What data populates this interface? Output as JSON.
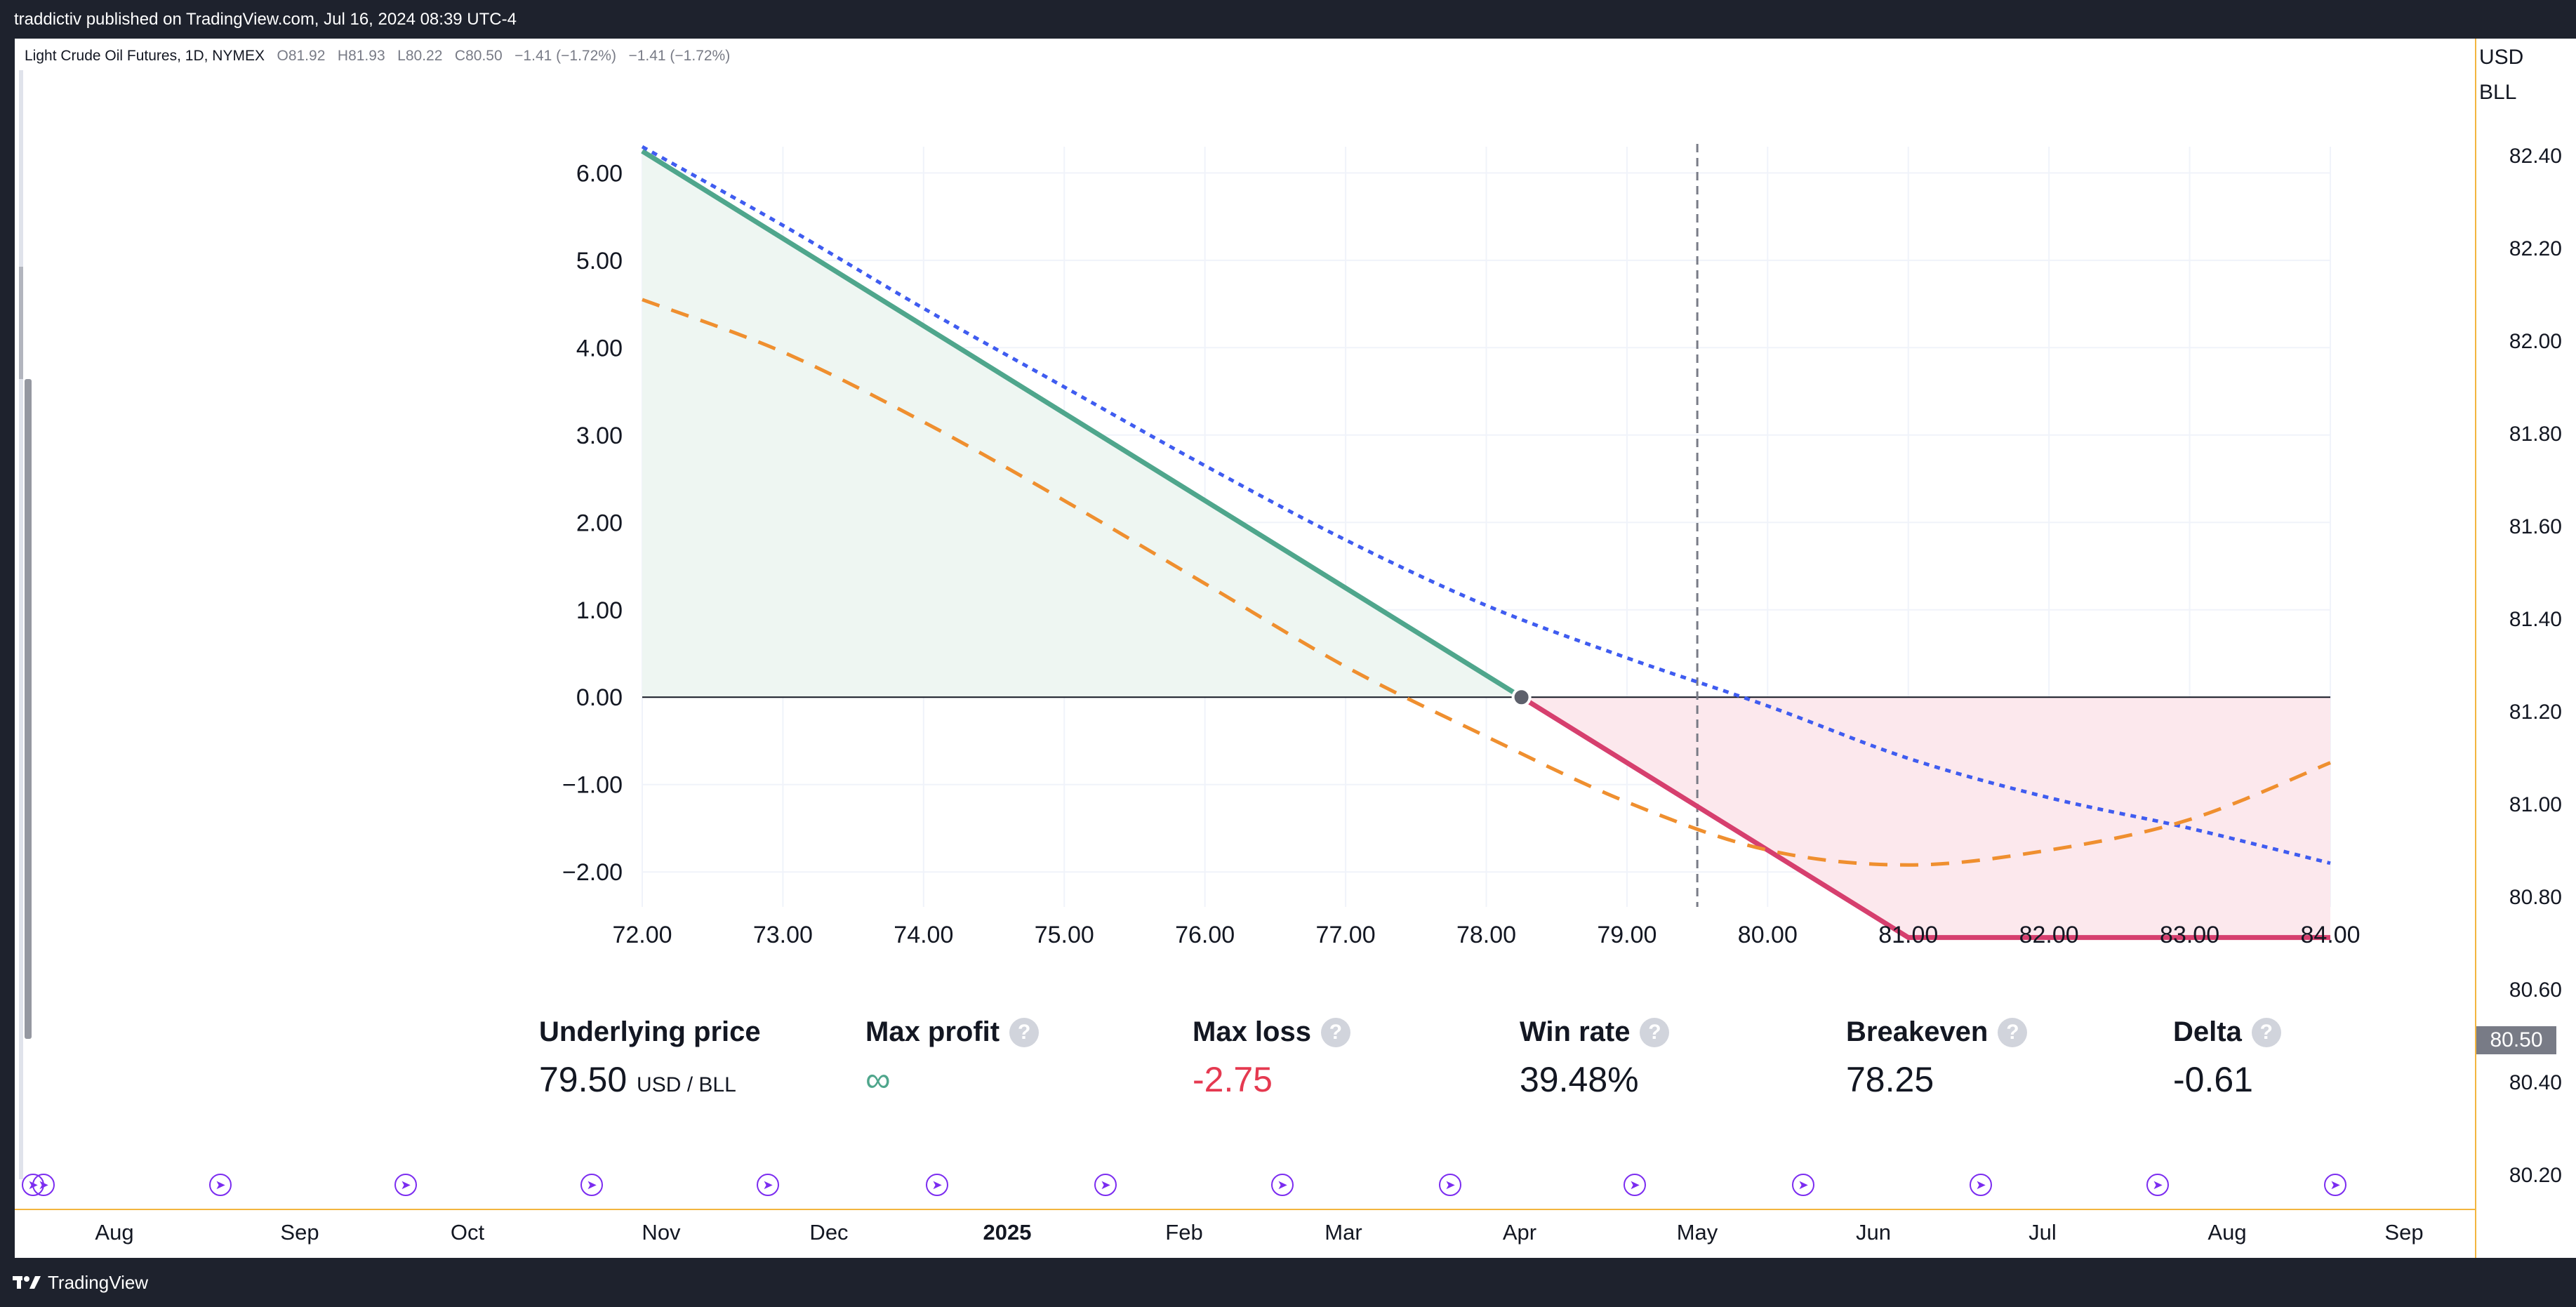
{
  "header": {
    "publisher_text": "traddictiv published on TradingView.com, Jul 16, 2024 08:39 UTC-4"
  },
  "legend": {
    "symbol": "Light Crude Oil Futures, 1D, NYMEX",
    "open_label": "O",
    "open": "81.92",
    "high_label": "H",
    "high": "81.93",
    "low_label": "L",
    "low": "80.22",
    "close_label": "C",
    "close": "80.50",
    "change1": "−1.41 (−1.72%)",
    "change2": "−1.41 (−1.72%)"
  },
  "price_axis": {
    "currency": "USD",
    "unit": "BLL",
    "ticks": [
      "82.40",
      "82.20",
      "82.00",
      "81.80",
      "81.60",
      "81.40",
      "81.20",
      "81.00",
      "80.80",
      "80.60",
      "80.40",
      "80.20"
    ],
    "current_price": "80.50"
  },
  "time_axis": {
    "labels": [
      "Aug",
      "Sep",
      "Oct",
      "Nov",
      "Dec",
      "2025",
      "Feb",
      "Mar",
      "Apr",
      "May",
      "Jun",
      "Jul",
      "Aug",
      "Sep"
    ],
    "bold_label": "2025"
  },
  "event_icon": "circle-arrow-icon",
  "chart_data": {
    "type": "line",
    "title": "",
    "xlabel": "",
    "ylabel": "",
    "xlim": [
      72.0,
      84.0
    ],
    "ylim": [
      -2.4,
      6.3
    ],
    "x_ticks": [
      "72.00",
      "73.00",
      "74.00",
      "75.00",
      "76.00",
      "77.00",
      "78.00",
      "79.00",
      "80.00",
      "81.00",
      "82.00",
      "83.00",
      "84.00"
    ],
    "y_ticks": [
      "6.00",
      "5.00",
      "4.00",
      "3.00",
      "2.00",
      "1.00",
      "0.00",
      "−1.00",
      "−2.00"
    ],
    "grid": true,
    "underlying_marker_x": 79.5,
    "breakeven_point": [
      78.25,
      0.0
    ],
    "series": [
      {
        "style": "solid",
        "color": "#4fa68c",
        "x": [
          72.0,
          78.25
        ],
        "y": [
          6.25,
          0.0
        ]
      },
      {
        "style": "solid",
        "color": "#d63f6e",
        "x": [
          78.25,
          81.0,
          84.0
        ],
        "y": [
          0.0,
          -2.75,
          -2.75
        ]
      },
      {
        "style": "dotted",
        "color": "#3f5cf0",
        "x": [
          72.0,
          73.0,
          74.0,
          75.0,
          76.0,
          77.0,
          78.0,
          79.0,
          80.0,
          81.0,
          82.0,
          83.0,
          84.0
        ],
        "y": [
          6.3,
          5.4,
          4.45,
          3.55,
          2.65,
          1.8,
          1.05,
          0.45,
          -0.1,
          -0.7,
          -1.15,
          -1.5,
          -1.9
        ]
      },
      {
        "style": "dashed",
        "color": "#ef8f2f",
        "x": [
          72.0,
          73.0,
          74.0,
          75.0,
          76.0,
          77.0,
          78.0,
          79.0,
          80.0,
          81.0,
          82.0,
          83.0,
          84.0
        ],
        "y": [
          4.55,
          3.95,
          3.15,
          2.25,
          1.3,
          0.35,
          -0.45,
          -1.2,
          -1.75,
          -1.92,
          -1.75,
          -1.4,
          -0.75
        ]
      }
    ],
    "profit_fill_color": "#eef6f2",
    "loss_fill_color": "#fce8ed"
  },
  "stats": {
    "underlying_price": {
      "label": "Underlying price",
      "value": "79.50",
      "unit": "USD / BLL"
    },
    "max_profit": {
      "label": "Max profit",
      "value": "∞"
    },
    "max_loss": {
      "label": "Max loss",
      "value": "-2.75"
    },
    "win_rate": {
      "label": "Win rate",
      "value": "39.48%"
    },
    "breakeven": {
      "label": "Breakeven",
      "value": "78.25"
    },
    "delta": {
      "label": "Delta",
      "value": "-0.61"
    },
    "help_glyph": "?"
  },
  "footer": {
    "brand": "TradingView"
  }
}
